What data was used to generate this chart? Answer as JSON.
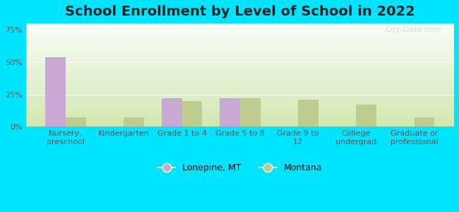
{
  "title": "School Enrollment by Level of School in 2022",
  "categories": [
    "Nursery,\npreschool",
    "Kindergarten",
    "Grade 1 to 4",
    "Grade 5 to 8",
    "Grade 9 to\n12",
    "College\nundergrad",
    "Graduate or\nprofessional"
  ],
  "lonepine_values": [
    54,
    0,
    22,
    22,
    0,
    0,
    0
  ],
  "montana_values": [
    7,
    7,
    20,
    22,
    21,
    17,
    7
  ],
  "lonepine_color": "#c9a8d4",
  "montana_color": "#bfcc8f",
  "background_outer": "#00e5ff",
  "plot_bg_top": "#f8fef5",
  "plot_bg_bottom": "#d0e8b0",
  "title_fontsize": 14,
  "tick_fontsize": 8,
  "legend_fontsize": 9,
  "ylim": [
    0,
    80
  ],
  "yticks": [
    0,
    25,
    50,
    75
  ],
  "ytick_labels": [
    "0%",
    "25%",
    "50%",
    "75%"
  ],
  "bar_width": 0.35,
  "legend_labels": [
    "Lonepine, MT",
    "Montana"
  ],
  "watermark": "City-Data.com"
}
